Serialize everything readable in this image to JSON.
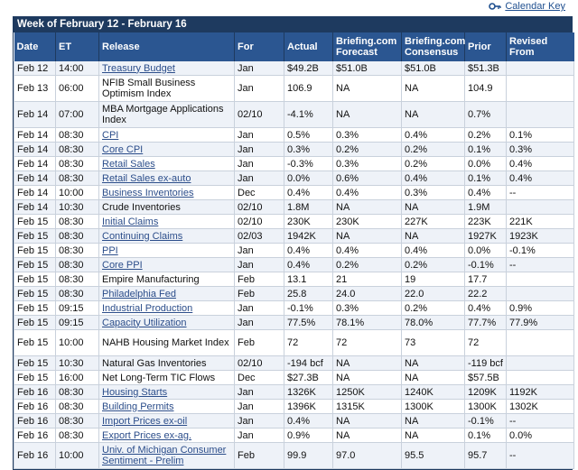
{
  "header": {
    "calendar_key_label": "Calendar Key",
    "week_title": "Week of February 12 - February 16"
  },
  "columns": {
    "date": "Date",
    "et": "ET",
    "release": "Release",
    "for": "For",
    "actual": "Actual",
    "briefing_forecast": "Briefing.com Forecast",
    "briefing_consensus": "Briefing.com Consensus",
    "prior": "Prior",
    "revised_from": "Revised From"
  },
  "rows": [
    {
      "date": "Feb 12",
      "et": "14:00",
      "release": "Treasury Budget",
      "link": true,
      "for": "Jan",
      "actual": "$49.2B",
      "forecast": "$51.0B",
      "consensus": "$51.0B",
      "prior": "$51.3B",
      "revised": ""
    },
    {
      "date": "Feb 13",
      "et": "06:00",
      "release": "NFIB Small Business Optimism Index",
      "link": false,
      "for": "Jan",
      "actual": "106.9",
      "forecast": "NA",
      "consensus": "NA",
      "prior": "104.9",
      "revised": ""
    },
    {
      "date": "Feb 14",
      "et": "07:00",
      "release": "MBA Mortgage Applications Index",
      "link": false,
      "for": "02/10",
      "actual": "-4.1%",
      "forecast": "NA",
      "consensus": "NA",
      "prior": "0.7%",
      "revised": ""
    },
    {
      "date": "Feb 14",
      "et": "08:30",
      "release": "CPI",
      "link": true,
      "for": "Jan",
      "actual": "0.5%",
      "forecast": "0.3%",
      "consensus": "0.4%",
      "prior": "0.2%",
      "revised": "0.1%"
    },
    {
      "date": "Feb 14",
      "et": "08:30",
      "release": "Core CPI",
      "link": true,
      "for": "Jan",
      "actual": "0.3%",
      "forecast": "0.2%",
      "consensus": "0.2%",
      "prior": "0.1%",
      "revised": "0.3%"
    },
    {
      "date": "Feb 14",
      "et": "08:30",
      "release": "Retail Sales",
      "link": true,
      "for": "Jan",
      "actual": "-0.3%",
      "forecast": "0.3%",
      "consensus": "0.2%",
      "prior": "0.0%",
      "revised": "0.4%"
    },
    {
      "date": "Feb 14",
      "et": "08:30",
      "release": "Retail Sales ex-auto",
      "link": true,
      "for": "Jan",
      "actual": "0.0%",
      "forecast": "0.6%",
      "consensus": "0.4%",
      "prior": "0.1%",
      "revised": "0.4%"
    },
    {
      "date": "Feb 14",
      "et": "10:00",
      "release": "Business Inventories",
      "link": true,
      "for": "Dec",
      "actual": "0.4%",
      "forecast": "0.4%",
      "consensus": "0.3%",
      "prior": "0.4%",
      "revised": "--"
    },
    {
      "date": "Feb 14",
      "et": "10:30",
      "release": "Crude Inventories",
      "link": false,
      "for": "02/10",
      "actual": "1.8M",
      "forecast": "NA",
      "consensus": "NA",
      "prior": "1.9M",
      "revised": ""
    },
    {
      "date": "Feb 15",
      "et": "08:30",
      "release": "Initial Claims",
      "link": true,
      "for": "02/10",
      "actual": "230K",
      "forecast": "230K",
      "consensus": "227K",
      "prior": "223K",
      "revised": "221K"
    },
    {
      "date": "Feb 15",
      "et": "08:30",
      "release": "Continuing Claims",
      "link": true,
      "for": "02/03",
      "actual": "1942K",
      "forecast": "NA",
      "consensus": "NA",
      "prior": "1927K",
      "revised": "1923K"
    },
    {
      "date": "Feb 15",
      "et": "08:30",
      "release": "PPI",
      "link": true,
      "for": "Jan",
      "actual": "0.4%",
      "forecast": "0.4%",
      "consensus": "0.4%",
      "prior": "0.0%",
      "revised": "-0.1%"
    },
    {
      "date": "Feb 15",
      "et": "08:30",
      "release": "Core PPI",
      "link": true,
      "for": "Jan",
      "actual": "0.4%",
      "forecast": "0.2%",
      "consensus": "0.2%",
      "prior": "-0.1%",
      "revised": "--"
    },
    {
      "date": "Feb 15",
      "et": "08:30",
      "release": "Empire Manufacturing",
      "link": false,
      "for": "Feb",
      "actual": "13.1",
      "forecast": "21",
      "consensus": "19",
      "prior": "17.7",
      "revised": ""
    },
    {
      "date": "Feb 15",
      "et": "08:30",
      "release": "Philadelphia Fed",
      "link": true,
      "for": "Feb",
      "actual": "25.8",
      "forecast": "24.0",
      "consensus": "22.0",
      "prior": "22.2",
      "revised": ""
    },
    {
      "date": "Feb 15",
      "et": "09:15",
      "release": "Industrial Production",
      "link": true,
      "for": "Jan",
      "actual": "-0.1%",
      "forecast": "0.3%",
      "consensus": "0.2%",
      "prior": "0.4%",
      "revised": "0.9%"
    },
    {
      "date": "Feb 15",
      "et": "09:15",
      "release": "Capacity Utilization",
      "link": true,
      "for": "Jan",
      "actual": "77.5%",
      "forecast": "78.1%",
      "consensus": "78.0%",
      "prior": "77.7%",
      "revised": "77.9%"
    },
    {
      "date": "Feb 15",
      "et": "10:00",
      "release": "NAHB Housing Market Index",
      "link": false,
      "for": "Feb",
      "actual": "72",
      "forecast": "72",
      "consensus": "73",
      "prior": "72",
      "revised": ""
    },
    {
      "date": "Feb 15",
      "et": "10:30",
      "release": "Natural Gas Inventories",
      "link": false,
      "for": "02/10",
      "actual": "-194 bcf",
      "forecast": "NA",
      "consensus": "NA",
      "prior": "-119 bcf",
      "revised": ""
    },
    {
      "date": "Feb 15",
      "et": "16:00",
      "release": "Net Long-Term TIC Flows",
      "link": false,
      "for": "Dec",
      "actual": "$27.3B",
      "forecast": "NA",
      "consensus": "NA",
      "prior": "$57.5B",
      "revised": ""
    },
    {
      "date": "Feb 16",
      "et": "08:30",
      "release": "Housing Starts",
      "link": true,
      "for": "Jan",
      "actual": "1326K",
      "forecast": "1250K",
      "consensus": "1240K",
      "prior": "1209K",
      "revised": "1192K"
    },
    {
      "date": "Feb 16",
      "et": "08:30",
      "release": "Building Permits",
      "link": true,
      "for": "Jan",
      "actual": "1396K",
      "forecast": "1315K",
      "consensus": "1300K",
      "prior": "1300K",
      "revised": "1302K"
    },
    {
      "date": "Feb 16",
      "et": "08:30",
      "release": "Import Prices ex-oil",
      "link": true,
      "for": "Jan",
      "actual": "0.4%",
      "forecast": "NA",
      "consensus": "NA",
      "prior": "-0.1%",
      "revised": "--"
    },
    {
      "date": "Feb 16",
      "et": "08:30",
      "release": "Export Prices ex-ag.",
      "link": true,
      "for": "Jan",
      "actual": "0.9%",
      "forecast": "NA",
      "consensus": "NA",
      "prior": "0.1%",
      "revised": "0.0%"
    },
    {
      "date": "Feb 16",
      "et": "10:00",
      "release": "Univ. of Michigan Consumer Sentiment - Prelim",
      "link": true,
      "for": "Feb",
      "actual": "99.9",
      "forecast": "97.0",
      "consensus": "95.5",
      "prior": "95.7",
      "revised": "--"
    }
  ]
}
